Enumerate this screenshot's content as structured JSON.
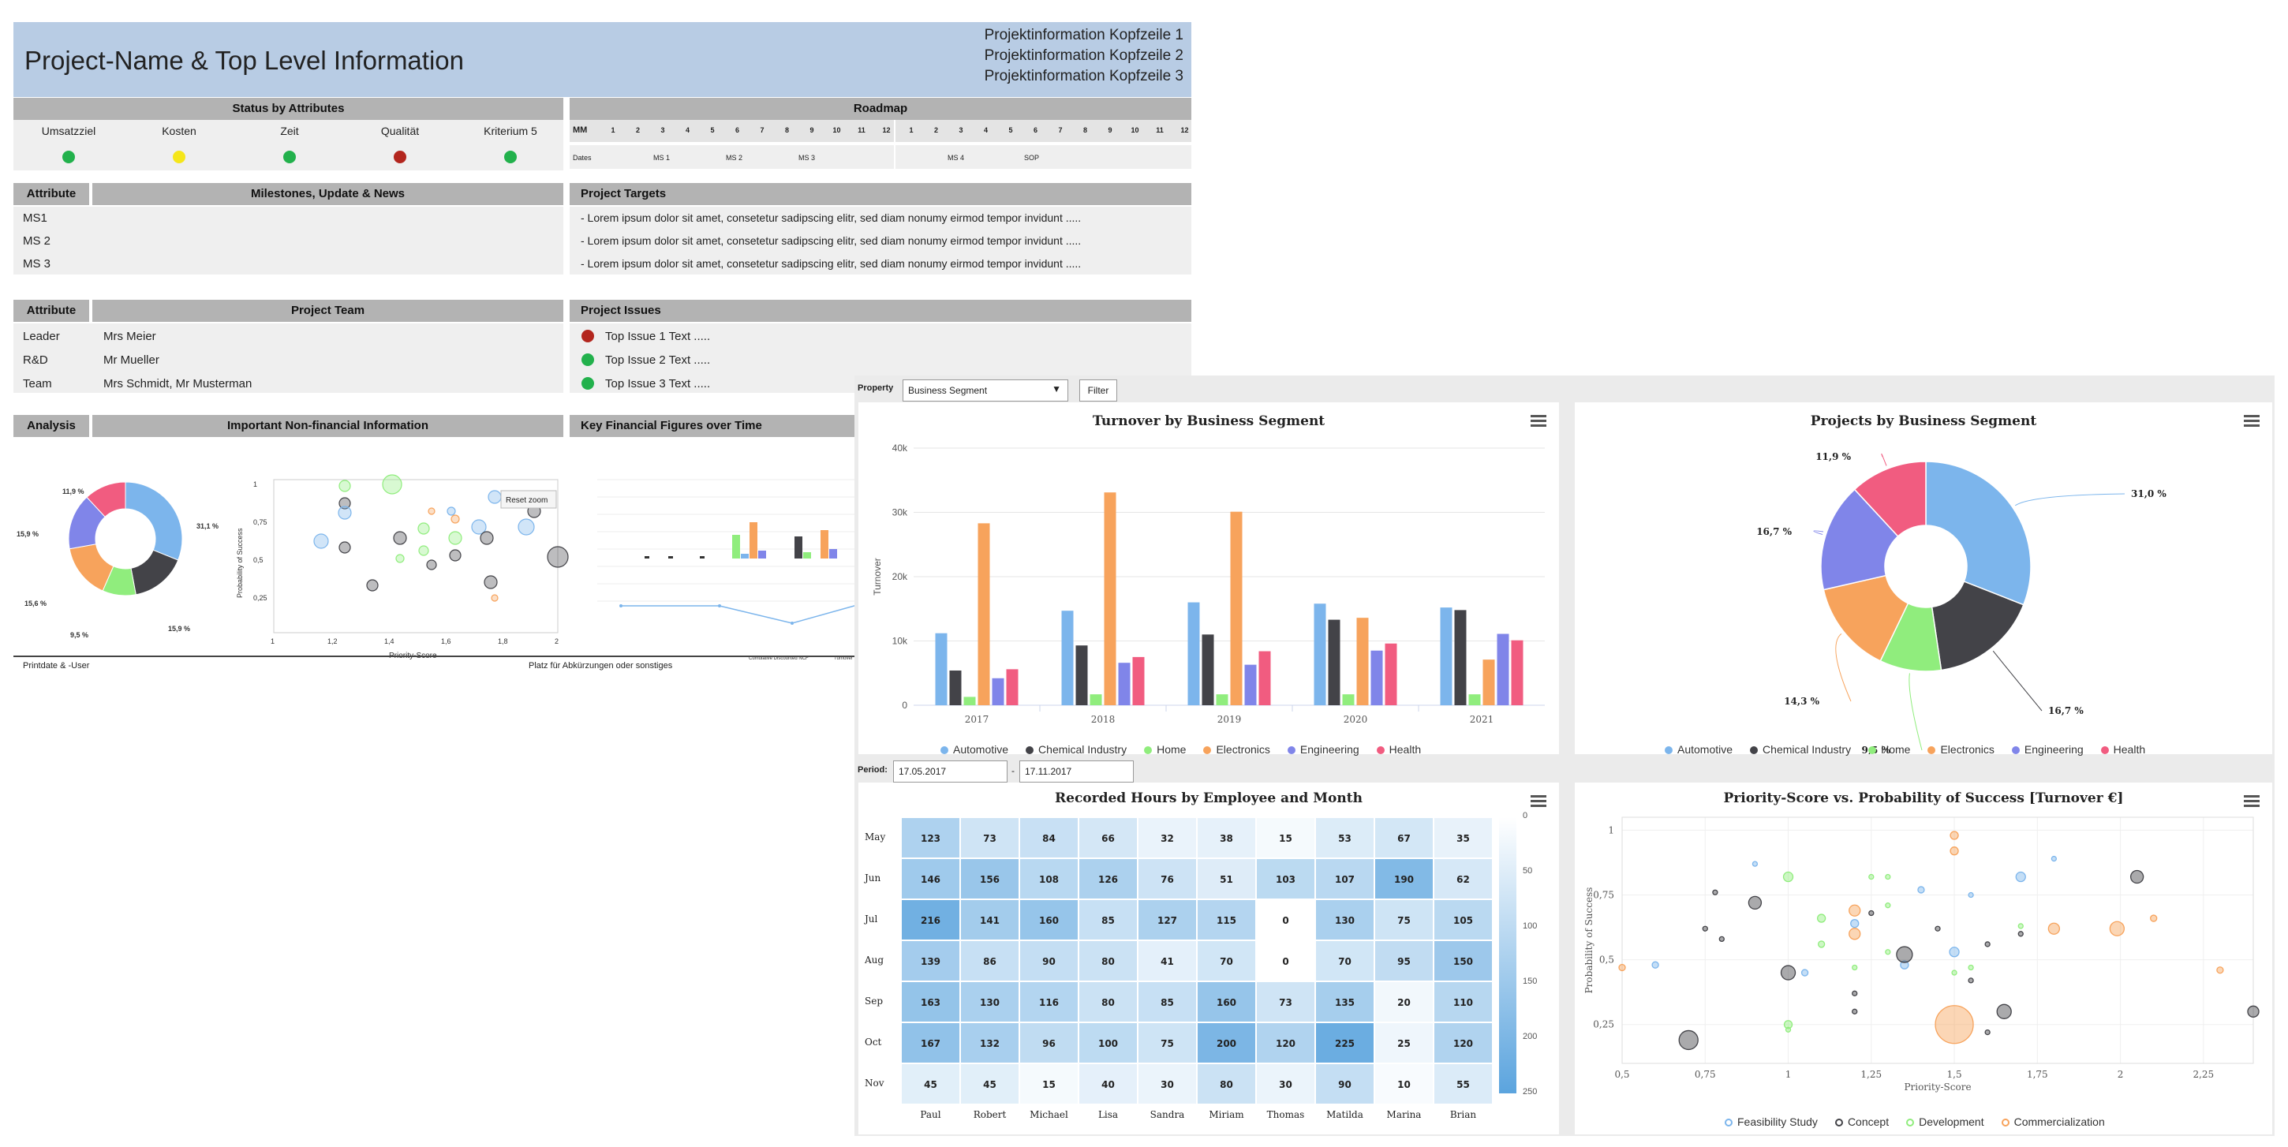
{
  "report": {
    "title": "Project-Name & Top Level Information",
    "header_info": [
      "Projektinformation  Kopfzeile 1",
      "Projektinformation  Kopfzeile 2",
      "Projektinformation  Kopfzeile 3"
    ],
    "status": {
      "title": "Status by Attributes",
      "columns": [
        "Umsatzziel",
        "Kosten",
        "Zeit",
        "Qualität",
        "Kriterium 5"
      ],
      "colors": [
        "#22b14c",
        "#f5e61a",
        "#22b14c",
        "#b3261e",
        "#22b14c"
      ]
    },
    "roadmap": {
      "title": "Roadmap",
      "mm_label": "MM",
      "months": [
        "1",
        "2",
        "3",
        "4",
        "5",
        "6",
        "7",
        "8",
        "9",
        "10",
        "11",
        "12",
        "1",
        "2",
        "3",
        "4",
        "5",
        "6",
        "7",
        "8",
        "9",
        "10",
        "11",
        "12"
      ],
      "dates_label": "Dates",
      "milestones": [
        "MS 1",
        "MS 2",
        "MS 3",
        "MS 4",
        "SOP"
      ]
    },
    "milestones": {
      "attr_header": "Attribute",
      "title": "Milestones, Update & News",
      "rows": [
        "MS1",
        "MS 2",
        "MS 3"
      ]
    },
    "targets": {
      "title": "Project Targets",
      "rows": [
        "- Lorem ipsum dolor sit amet, consetetur sadipscing elitr, sed diam nonumy eirmod tempor invidunt .....",
        "- Lorem ipsum dolor sit amet, consetetur sadipscing elitr, sed diam nonumy eirmod tempor invidunt .....",
        "- Lorem ipsum dolor sit amet, consetetur sadipscing elitr, sed diam nonumy eirmod tempor invidunt ....."
      ]
    },
    "team": {
      "attr_header": "Attribute",
      "title": "Project Team",
      "rows": [
        {
          "role": "Leader",
          "name": "Mrs Meier"
        },
        {
          "role": "R&D",
          "name": "Mr Mueller"
        },
        {
          "role": "Team",
          "name": "Mrs Schmidt, Mr Musterman"
        }
      ]
    },
    "issues": {
      "title": "Project Issues",
      "rows": [
        {
          "text": "Top Issue 1 Text .....",
          "color": "#b3261e"
        },
        {
          "text": "Top Issue 2 Text .....",
          "color": "#22b14c"
        },
        {
          "text": "Top Issue 3 Text .....",
          "color": "#22b14c"
        }
      ]
    },
    "analysis": {
      "attr_header": "Analysis",
      "title": "Important Non-financial Information",
      "donut_labels": [
        "11,9 %",
        "31,1 %",
        "15,9 %",
        "9,5 %",
        "15,6 %",
        "15,9 %"
      ],
      "reset_zoom": "Reset zoom",
      "scatter_ylabel": "Probability of Success",
      "scatter_xlabel": "Priority-Score",
      "scatter_yticks": [
        "1",
        "0,75",
        "0,5",
        "0,25"
      ],
      "scatter_xticks": [
        "1",
        "1,2",
        "1,4",
        "1,6",
        "1,8",
        "2"
      ]
    },
    "financial": {
      "title": "Key Financial Figures over Time",
      "legend": [
        "Cumulative Discounted NCF",
        "Turnover"
      ]
    },
    "footer": {
      "left": "Printdate & -User",
      "center": "Platz für Abkürzungen oder sonstiges"
    }
  },
  "dashboard": {
    "property_label": "Property",
    "property_value": "Business Segment",
    "filter_button": "Filter",
    "period_label": "Period:",
    "period_from": "17.05.2017",
    "period_separator": "-",
    "period_to": "17.11.2017",
    "segments": [
      {
        "name": "Automotive",
        "color": "#7cb5ec"
      },
      {
        "name": "Chemical Industry",
        "color": "#434348"
      },
      {
        "name": "Home",
        "color": "#90ed7d"
      },
      {
        "name": "Electronics",
        "color": "#f7a35c"
      },
      {
        "name": "Engineering",
        "color": "#8085e9"
      },
      {
        "name": "Health",
        "color": "#f15c80"
      }
    ],
    "phases": [
      {
        "name": "Feasibility Study",
        "color": "#7cb5ec"
      },
      {
        "name": "Concept",
        "color": "#434348"
      },
      {
        "name": "Development",
        "color": "#90ed7d"
      },
      {
        "name": "Commercialization",
        "color": "#f7a35c"
      }
    ]
  },
  "chart_data": [
    {
      "type": "bar",
      "title": "Turnover by Business Segment",
      "ylabel": "Turnover",
      "categories": [
        "2017",
        "2018",
        "2019",
        "2020",
        "2021"
      ],
      "ylim": [
        0,
        40000
      ],
      "yticks": [
        "0",
        "10k",
        "20k",
        "30k",
        "40k"
      ],
      "series": [
        {
          "name": "Automotive",
          "values": [
            11200,
            14700,
            16000,
            15800,
            15200
          ]
        },
        {
          "name": "Chemical Industry",
          "values": [
            5400,
            9300,
            11000,
            13300,
            14800
          ]
        },
        {
          "name": "Home",
          "values": [
            1300,
            1700,
            1700,
            1700,
            1700
          ]
        },
        {
          "name": "Electronics",
          "values": [
            28300,
            33100,
            30100,
            13600,
            7100
          ]
        },
        {
          "name": "Engineering",
          "values": [
            4200,
            6600,
            6300,
            8500,
            11100
          ]
        },
        {
          "name": "Health",
          "values": [
            5600,
            7500,
            8400,
            9600,
            10100
          ]
        }
      ]
    },
    {
      "type": "pie",
      "title": "Projects by Business Segment",
      "categories": [
        "Automotive",
        "Chemical Industry",
        "Home",
        "Electronics",
        "Engineering",
        "Health"
      ],
      "values": [
        31.0,
        16.7,
        9.5,
        14.3,
        16.7,
        11.9
      ],
      "labels": [
        "31,0 %",
        "16,7 %",
        "9,5 %",
        "14,3 %",
        "16,7 %",
        "11,9 %"
      ]
    },
    {
      "type": "heatmap",
      "title": "Recorded Hours by Employee and Month",
      "x": [
        "Paul",
        "Robert",
        "Michael",
        "Lisa",
        "Sandra",
        "Miriam",
        "Thomas",
        "Matilda",
        "Marina",
        "Brian"
      ],
      "y": [
        "May",
        "Jun",
        "Jul",
        "Aug",
        "Sep",
        "Oct",
        "Nov"
      ],
      "values": [
        [
          123,
          73,
          84,
          66,
          32,
          38,
          15,
          53,
          67,
          35
        ],
        [
          146,
          156,
          108,
          126,
          76,
          51,
          103,
          107,
          190,
          62
        ],
        [
          216,
          141,
          160,
          85,
          127,
          115,
          0,
          130,
          75,
          105
        ],
        [
          139,
          86,
          90,
          80,
          41,
          70,
          0,
          70,
          95,
          150
        ],
        [
          163,
          130,
          116,
          80,
          85,
          160,
          73,
          135,
          20,
          110
        ],
        [
          167,
          132,
          96,
          100,
          75,
          200,
          120,
          225,
          25,
          120
        ],
        [
          45,
          45,
          15,
          40,
          30,
          80,
          30,
          90,
          10,
          55
        ]
      ],
      "colorbar": [
        "0",
        "50",
        "100",
        "150",
        "200",
        "250"
      ]
    },
    {
      "type": "scatter",
      "title": "Priority-Score vs. Probability of Success [Turnover €]",
      "xlabel": "Priority-Score",
      "ylabel": "Probability of Success",
      "xlim": [
        0.5,
        2.4
      ],
      "ylim": [
        0.1,
        1.05
      ],
      "xticks": [
        "0,5",
        "0,75",
        "1",
        "1,25",
        "1,5",
        "1,75",
        "2",
        "2,25"
      ],
      "yticks": [
        "0,25",
        "0,5",
        "0,75",
        "1"
      ],
      "series": [
        {
          "name": "Feasibility Study",
          "points": [
            [
              0.6,
              0.48,
              4
            ],
            [
              0.9,
              0.87,
              3
            ],
            [
              1.05,
              0.45,
              4
            ],
            [
              1.2,
              0.64,
              5
            ],
            [
              1.35,
              0.48,
              5
            ],
            [
              1.4,
              0.77,
              4
            ],
            [
              1.5,
              0.53,
              6
            ],
            [
              1.55,
              0.75,
              3
            ],
            [
              1.7,
              0.82,
              6
            ],
            [
              1.8,
              0.89,
              3
            ]
          ]
        },
        {
          "name": "Concept",
          "points": [
            [
              0.7,
              0.19,
              12
            ],
            [
              0.75,
              0.62,
              3
            ],
            [
              0.78,
              0.76,
              3
            ],
            [
              0.8,
              0.58,
              3
            ],
            [
              0.9,
              0.72,
              8
            ],
            [
              1,
              0.45,
              9
            ],
            [
              1.2,
              0.3,
              3
            ],
            [
              1.2,
              0.37,
              3
            ],
            [
              1.25,
              0.68,
              3
            ],
            [
              1.35,
              0.52,
              10
            ],
            [
              1.45,
              0.62,
              3
            ],
            [
              1.55,
              0.42,
              3
            ],
            [
              1.6,
              0.22,
              3
            ],
            [
              1.6,
              0.56,
              3
            ],
            [
              1.65,
              0.3,
              9
            ],
            [
              1.7,
              0.6,
              3
            ],
            [
              2.05,
              0.82,
              8
            ],
            [
              2.4,
              0.3,
              7
            ]
          ]
        },
        {
          "name": "Development",
          "points": [
            [
              1,
              0.25,
              5
            ],
            [
              1,
              0.23,
              3
            ],
            [
              1,
              0.82,
              6
            ],
            [
              1.1,
              0.56,
              4
            ],
            [
              1.1,
              0.66,
              5
            ],
            [
              1.2,
              0.47,
              3
            ],
            [
              1.25,
              0.82,
              3
            ],
            [
              1.3,
              0.71,
              3
            ],
            [
              1.3,
              0.53,
              3
            ],
            [
              1.3,
              0.82,
              3
            ],
            [
              1.5,
              0.45,
              3
            ],
            [
              1.55,
              0.47,
              3
            ],
            [
              1.7,
              0.63,
              3
            ]
          ]
        },
        {
          "name": "Commercialization",
          "points": [
            [
              0.5,
              0.47,
              4
            ],
            [
              1.2,
              0.69,
              7
            ],
            [
              1.2,
              0.6,
              7
            ],
            [
              1.5,
              0.25,
              24
            ],
            [
              1.5,
              0.92,
              5
            ],
            [
              1.5,
              0.98,
              5
            ],
            [
              1.8,
              0.62,
              7
            ],
            [
              1.99,
              0.62,
              9
            ],
            [
              2.1,
              0.66,
              4
            ],
            [
              2.3,
              0.46,
              4
            ]
          ]
        }
      ]
    }
  ]
}
